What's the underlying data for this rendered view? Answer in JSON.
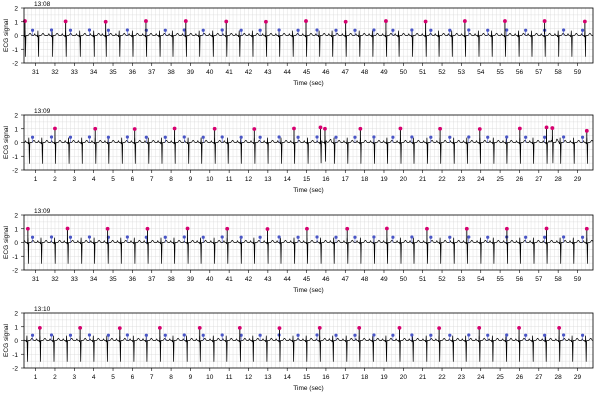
{
  "colors": {
    "grid": "#d8d8d8",
    "axis": "#000000",
    "trace": "#000000",
    "peak_marker": "#d6006f",
    "point_marker": "#4a56c6"
  },
  "chart_data": [
    {
      "type": "line",
      "timestamp": "13:08",
      "xlabel": "Time (sec)",
      "ylabel": "ECG signal",
      "xlim": [
        30.4,
        59.8
      ],
      "ylim": [
        -2,
        2
      ],
      "xticks": [
        31,
        32,
        33,
        34,
        35,
        36,
        37,
        38,
        39,
        40,
        41,
        42,
        43,
        44,
        45,
        46,
        47,
        48,
        49,
        50,
        51,
        52,
        53,
        54,
        55,
        56,
        57,
        58,
        59
      ],
      "yticks": [
        -2,
        -1,
        0,
        1,
        2
      ],
      "grid": true,
      "beat_times": [
        30.45,
        31.12,
        31.85,
        32.55,
        33.28,
        34.0,
        34.62,
        35.32,
        36.0,
        36.7,
        37.4,
        38.07,
        38.76,
        39.45,
        40.15,
        40.85,
        41.52,
        42.2,
        42.9,
        43.58,
        44.28,
        44.97,
        45.65,
        46.32,
        47.02,
        47.72,
        48.4,
        49.1,
        49.75,
        50.45,
        51.15,
        51.82,
        52.5,
        53.18,
        53.88,
        54.56,
        55.25,
        55.95,
        56.62,
        57.3,
        58.0,
        58.68,
        59.38
      ],
      "peak_times": [
        30.45,
        32.55,
        34.62,
        36.7,
        38.76,
        40.85,
        42.9,
        44.97,
        47.02,
        49.1,
        51.15,
        53.18,
        55.25,
        57.3,
        59.38
      ],
      "peak_values": [
        1.05,
        1.03,
        1.0,
        1.05,
        1.05,
        1.02,
        1.0,
        1.05,
        1.0,
        1.05,
        1.02,
        1.05,
        1.05,
        1.05,
        1.02
      ],
      "point_values": [
        0.38,
        0.4,
        0.38,
        0.4,
        0.38,
        0.4,
        0.38,
        0.38,
        0.4,
        0.38,
        0.4,
        0.38,
        0.38,
        0.4,
        0.38,
        0.4,
        0.38,
        0.38,
        0.4,
        0.38,
        0.4,
        0.38,
        0.38,
        0.4,
        0.38,
        0.4,
        0.38,
        0.38,
        0.4,
        0.38
      ]
    },
    {
      "type": "line",
      "timestamp": "13:09",
      "xlabel": "Time (sec)",
      "ylabel": "ECG signal",
      "xlim": [
        0.4,
        29.8
      ],
      "ylim": [
        -2,
        2
      ],
      "xticks": [
        1,
        2,
        3,
        4,
        5,
        6,
        7,
        8,
        9,
        10,
        11,
        12,
        13,
        14,
        15,
        16,
        17,
        18,
        19,
        20,
        21,
        22,
        23,
        24,
        25,
        26,
        27,
        28,
        29
      ],
      "yticks": [
        -2,
        -1,
        0,
        1,
        2
      ],
      "grid": true,
      "beat_times": [
        0.65,
        1.32,
        2.0,
        2.7,
        3.38,
        4.08,
        4.75,
        5.45,
        6.12,
        6.82,
        7.5,
        8.18,
        8.88,
        9.55,
        10.25,
        10.92,
        11.6,
        12.3,
        12.98,
        13.68,
        14.35,
        15.05,
        15.72,
        15.95,
        16.42,
        17.1,
        17.78,
        18.48,
        19.15,
        19.85,
        20.52,
        21.22,
        21.9,
        22.6,
        23.28,
        23.95,
        24.65,
        25.32,
        26.02,
        26.7,
        27.4,
        27.7,
        28.1,
        28.8,
        29.48
      ],
      "peak_times": [
        2.0,
        4.08,
        6.12,
        8.18,
        10.25,
        12.3,
        14.35,
        15.72,
        15.95,
        17.78,
        19.85,
        21.9,
        23.95,
        26.02,
        27.4,
        27.7,
        29.48
      ],
      "peak_values": [
        1.02,
        1.0,
        0.98,
        1.02,
        1.0,
        0.98,
        1.02,
        1.1,
        1.0,
        1.0,
        1.02,
        1.0,
        0.98,
        1.02,
        1.1,
        1.05,
        0.85
      ],
      "point_values": [
        0.38,
        0.4,
        0.38,
        0.4,
        0.38,
        0.4,
        0.38,
        0.38,
        0.4,
        0.38,
        0.4,
        0.38,
        0.38,
        0.4,
        0.38,
        0.4,
        0.38,
        0.38,
        0.4,
        0.38,
        0.4,
        0.38,
        0.38,
        0.4,
        0.38,
        0.4,
        0.38,
        0.38,
        0.4,
        0.38
      ]
    },
    {
      "type": "line",
      "timestamp": "13:09",
      "xlabel": "Time (sec)",
      "ylabel": "ECG signal",
      "xlim": [
        30.4,
        59.8
      ],
      "ylim": [
        -2,
        2
      ],
      "xticks": [
        31,
        32,
        33,
        34,
        35,
        36,
        37,
        38,
        39,
        40,
        41,
        42,
        43,
        44,
        45,
        46,
        47,
        48,
        49,
        50,
        51,
        52,
        53,
        54,
        55,
        56,
        57,
        58,
        59
      ],
      "yticks": [
        -2,
        -1,
        0,
        1,
        2
      ],
      "grid": true,
      "beat_times": [
        30.6,
        31.28,
        31.98,
        32.65,
        33.35,
        34.02,
        34.72,
        35.4,
        36.1,
        36.78,
        37.48,
        38.15,
        38.85,
        39.52,
        40.22,
        40.9,
        41.6,
        42.28,
        42.98,
        43.65,
        44.35,
        45.02,
        45.72,
        46.4,
        47.1,
        47.78,
        48.48,
        49.15,
        49.85,
        50.52,
        51.22,
        51.9,
        52.6,
        53.28,
        53.98,
        54.65,
        55.35,
        56.02,
        56.72,
        57.4,
        58.1,
        58.78,
        59.48
      ],
      "peak_times": [
        30.6,
        32.65,
        34.72,
        36.78,
        38.85,
        40.9,
        42.98,
        45.02,
        47.1,
        49.15,
        51.22,
        53.28,
        55.35,
        57.4,
        59.48
      ],
      "peak_values": [
        1.0,
        1.02,
        1.0,
        1.0,
        1.02,
        1.0,
        0.98,
        1.0,
        1.0,
        1.02,
        1.0,
        1.0,
        1.0,
        1.02,
        1.0
      ],
      "point_values": [
        0.38,
        0.4,
        0.38,
        0.4,
        0.38,
        0.4,
        0.38,
        0.38,
        0.4,
        0.38,
        0.4,
        0.38,
        0.38,
        0.4,
        0.38,
        0.4,
        0.38,
        0.38,
        0.4,
        0.38,
        0.4,
        0.38,
        0.38,
        0.4,
        0.38,
        0.4,
        0.38,
        0.38,
        0.4,
        0.38
      ]
    },
    {
      "type": "line",
      "timestamp": "13:10",
      "xlabel": "Time (sec)",
      "ylabel": "ECG signal",
      "xlim": [
        0.4,
        29.8
      ],
      "ylim": [
        -2,
        2
      ],
      "xticks": [
        1,
        2,
        3,
        4,
        5,
        6,
        7,
        8,
        9,
        10,
        11,
        12,
        13,
        14,
        15,
        16,
        17,
        18,
        19,
        20,
        21,
        22,
        23,
        24,
        25,
        26,
        27,
        28,
        29
      ],
      "yticks": [
        -2,
        -1,
        0,
        1,
        2
      ],
      "grid": true,
      "beat_times": [
        0.55,
        1.22,
        1.92,
        2.6,
        3.3,
        3.98,
        4.68,
        5.35,
        6.05,
        6.72,
        7.42,
        8.1,
        8.8,
        9.48,
        10.18,
        10.85,
        11.55,
        12.22,
        12.92,
        13.6,
        14.3,
        14.98,
        15.68,
        16.35,
        17.05,
        17.72,
        18.42,
        19.1,
        19.8,
        20.48,
        21.18,
        21.85,
        22.55,
        23.22,
        23.92,
        24.6,
        25.3,
        25.98,
        26.68,
        27.35,
        28.05,
        28.72,
        29.42
      ],
      "peak_times": [
        1.22,
        3.3,
        5.35,
        7.42,
        9.48,
        11.55,
        13.6,
        15.68,
        17.72,
        19.8,
        21.85,
        23.92,
        25.98,
        28.05
      ],
      "peak_values": [
        0.92,
        0.92,
        0.9,
        0.92,
        0.92,
        0.92,
        0.9,
        0.92,
        0.92,
        0.92,
        0.9,
        0.92,
        0.92,
        0.92
      ],
      "point_values": [
        0.38,
        0.4,
        0.38,
        0.4,
        0.38,
        0.4,
        0.38,
        0.38,
        0.4,
        0.38,
        0.4,
        0.38,
        0.38,
        0.4,
        0.38,
        0.4,
        0.38,
        0.38,
        0.4,
        0.38,
        0.4,
        0.38,
        0.38,
        0.4,
        0.38,
        0.4,
        0.38,
        0.38,
        0.4,
        0.38
      ]
    }
  ]
}
